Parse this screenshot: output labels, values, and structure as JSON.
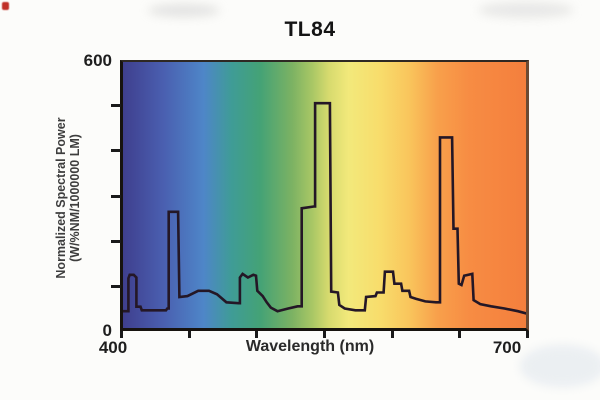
{
  "figure": {
    "title": "TL84",
    "x_axis": {
      "title": "Wavelength (nm)",
      "min_label": "400",
      "max_label": "700"
    },
    "y_axis": {
      "label_line1": "Normalized Spectral Power",
      "label_line2": "(W/%NM/1000000 LM)",
      "max_label": "600",
      "min_label": "0"
    }
  },
  "chart_data": {
    "type": "line",
    "title": "TL84",
    "xlabel": "Wavelength (nm)",
    "ylabel": "Normalized Spectral Power (W/%NM/1000000 LM)",
    "xlim": [
      400,
      700
    ],
    "ylim": [
      0,
      600
    ],
    "x_ticks": [
      400,
      450,
      500,
      550,
      600,
      650,
      700
    ],
    "x_tick_labels_shown": [
      "400",
      "700"
    ],
    "y_ticks": [
      0,
      100,
      200,
      300,
      400,
      500,
      600
    ],
    "y_tick_labels_shown": [
      "0",
      "600"
    ],
    "grid": false,
    "legend": "none",
    "line_color": "#241726",
    "line_width": 2.6,
    "background": {
      "type": "spectrum-gradient",
      "stops": [
        {
          "pos": 0,
          "color": "#3f3f8e"
        },
        {
          "pos": 10,
          "color": "#4a5fb0"
        },
        {
          "pos": 20,
          "color": "#4e86c8"
        },
        {
          "pos": 27,
          "color": "#3f9c96"
        },
        {
          "pos": 34,
          "color": "#44a276"
        },
        {
          "pos": 42,
          "color": "#7cb263"
        },
        {
          "pos": 47,
          "color": "#a9c765"
        },
        {
          "pos": 51,
          "color": "#d6da6e"
        },
        {
          "pos": 56,
          "color": "#f2e97b"
        },
        {
          "pos": 64,
          "color": "#f8dc6b"
        },
        {
          "pos": 71,
          "color": "#f9c55c"
        },
        {
          "pos": 78,
          "color": "#f8a04b"
        },
        {
          "pos": 86,
          "color": "#f78c43"
        },
        {
          "pos": 100,
          "color": "#f47f3d"
        }
      ]
    },
    "series": [
      {
        "name": "TL84 normalized spectral power",
        "points": [
          [
            400,
            38
          ],
          [
            404,
            38
          ],
          [
            404,
            112
          ],
          [
            405,
            120
          ],
          [
            408,
            120
          ],
          [
            410,
            114
          ],
          [
            410,
            48
          ],
          [
            413,
            48
          ],
          [
            414,
            40
          ],
          [
            432,
            40
          ],
          [
            433,
            44
          ],
          [
            434,
            44
          ],
          [
            434,
            262
          ],
          [
            441,
            262
          ],
          [
            442,
            70
          ],
          [
            448,
            72
          ],
          [
            456,
            84
          ],
          [
            464,
            84
          ],
          [
            470,
            76
          ],
          [
            477,
            58
          ],
          [
            486,
            56
          ],
          [
            487,
            56
          ],
          [
            487,
            114
          ],
          [
            489,
            122
          ],
          [
            493,
            114
          ],
          [
            497,
            120
          ],
          [
            499,
            118
          ],
          [
            500,
            84
          ],
          [
            504,
            72
          ],
          [
            507,
            58
          ],
          [
            510,
            46
          ],
          [
            515,
            38
          ],
          [
            523,
            44
          ],
          [
            530,
            49
          ],
          [
            533,
            49
          ],
          [
            533,
            270
          ],
          [
            542,
            274
          ],
          [
            543,
            274
          ],
          [
            543,
            507
          ],
          [
            554,
            507
          ],
          [
            555,
            82
          ],
          [
            560,
            80
          ],
          [
            561,
            52
          ],
          [
            565,
            44
          ],
          [
            573,
            40
          ],
          [
            580,
            40
          ],
          [
            581,
            70
          ],
          [
            588,
            72
          ],
          [
            589,
            80
          ],
          [
            594,
            80
          ],
          [
            595,
            127
          ],
          [
            601,
            127
          ],
          [
            602,
            100
          ],
          [
            607,
            100
          ],
          [
            608,
            84
          ],
          [
            613,
            84
          ],
          [
            614,
            70
          ],
          [
            618,
            66
          ],
          [
            625,
            60
          ],
          [
            633,
            58
          ],
          [
            636,
            58
          ],
          [
            636,
            430
          ],
          [
            645,
            430
          ],
          [
            646,
            224
          ],
          [
            649,
            224
          ],
          [
            650,
            100
          ],
          [
            652,
            97
          ],
          [
            654,
            118
          ],
          [
            660,
            122
          ],
          [
            661,
            63
          ],
          [
            666,
            54
          ],
          [
            674,
            49
          ],
          [
            684,
            44
          ],
          [
            694,
            38
          ],
          [
            700,
            33
          ]
        ]
      }
    ]
  }
}
